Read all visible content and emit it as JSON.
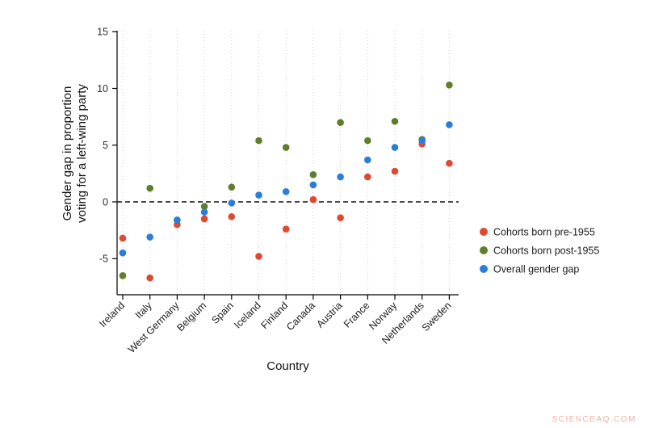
{
  "page": {
    "watermark": "SCIENCEAQ.COM"
  },
  "chart_data": {
    "type": "scatter",
    "title": "",
    "xlabel": "Country",
    "ylabel_lines": [
      "Gender gap in proportion",
      "voting for a left-wing party"
    ],
    "ylim": [
      -8.2,
      15.1
    ],
    "yticks": [
      -5,
      0,
      5,
      10,
      15
    ],
    "zero_line": true,
    "grid": "vertical-dotted",
    "legend_position": "right",
    "categories": [
      "Ireland",
      "Italy",
      "West Germany",
      "Belgium",
      "Spain",
      "Iceland",
      "Finland",
      "Canada",
      "Austria",
      "France",
      "Norway",
      "Netherlands",
      "Sweden"
    ],
    "series": [
      {
        "name": "Cohorts born pre-1955",
        "color": "#e0492f",
        "values": [
          -3.2,
          -6.7,
          -2.0,
          -1.5,
          -1.3,
          -4.8,
          -2.4,
          0.2,
          -1.4,
          2.2,
          2.7,
          5.1,
          3.4
        ]
      },
      {
        "name": "Cohorts born post-1955",
        "color": "#5f7e2c",
        "values": [
          -6.5,
          1.2,
          -1.6,
          -0.4,
          1.3,
          5.4,
          4.8,
          2.4,
          7.0,
          5.4,
          7.1,
          5.5,
          10.3
        ]
      },
      {
        "name": "Overall gender gap",
        "color": "#2b7ed8",
        "values": [
          -4.5,
          -3.1,
          -1.6,
          -0.9,
          -0.1,
          0.6,
          0.9,
          1.5,
          2.2,
          3.7,
          4.8,
          5.4,
          6.8
        ]
      }
    ]
  }
}
